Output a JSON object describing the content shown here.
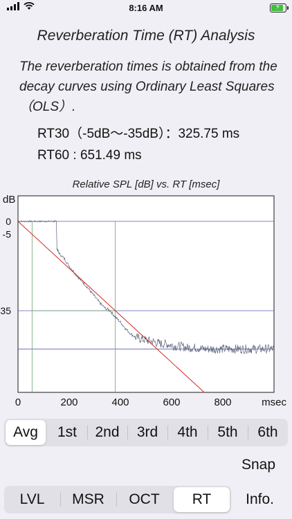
{
  "status": {
    "time": "8:16 AM"
  },
  "page": {
    "title": "Reverberation Time (RT) Analysis",
    "description": "The reverberation times is obtained from the decay curves using Ordinary Least Squares（OLS）.",
    "rt30": "RT30（-5dB～-35dB）：325.75 ms",
    "rt60": "RT60 : 651.49 ms"
  },
  "chart_data": {
    "type": "line",
    "title": "Relative SPL [dB] vs. RT [msec]",
    "xlabel": "msec",
    "ylabel": "dB",
    "xlim": [
      0,
      1000
    ],
    "ylim": [
      -67,
      10
    ],
    "x_ticks": [
      0,
      200,
      400,
      600,
      800
    ],
    "y_ticks": [
      0,
      -5,
      -35
    ],
    "reference_lines": {
      "horizontal_db": [
        0,
        -35,
        -50
      ],
      "vertical_ms": [
        55,
        380
      ]
    },
    "series": [
      {
        "kind": "measured",
        "color": "#5a6478",
        "x": [
          0,
          20,
          40,
          60,
          80,
          100,
          120,
          140,
          150,
          152,
          160,
          180,
          200,
          220,
          240,
          260,
          280,
          300,
          320,
          340,
          360,
          380,
          400,
          420,
          440,
          460,
          480,
          500,
          520,
          540,
          560,
          580,
          600,
          620,
          640,
          660,
          680,
          700,
          720,
          740,
          760,
          780,
          800,
          820,
          840,
          860,
          880,
          900,
          920,
          940,
          960,
          980,
          1000
        ],
        "y": [
          0,
          0,
          0,
          0,
          0,
          0,
          0,
          0,
          0,
          -10.5,
          -12.5,
          -14.5,
          -17.5,
          -20,
          -22.5,
          -24.5,
          -27,
          -29.5,
          -32,
          -34,
          -35,
          -37.5,
          -39.5,
          -42,
          -44,
          -45.5,
          -46,
          -46.5,
          -47,
          -47.5,
          -48,
          -48,
          -48.5,
          -49,
          -49,
          -49.5,
          -49.5,
          -49.5,
          -50,
          -50,
          -50,
          -50,
          -50,
          -50,
          -50,
          -50,
          -50,
          -50,
          -50,
          -50,
          -50,
          -50,
          -50
        ]
      },
      {
        "kind": "ols-fit",
        "color": "#d6261e",
        "x": [
          0,
          1000
        ],
        "y": [
          0,
          -92.1
        ]
      }
    ]
  },
  "periods": {
    "items": [
      "Avg",
      "1st",
      "2nd",
      "3rd",
      "4th",
      "5th",
      "6th"
    ],
    "selected": 0
  },
  "snap_label": "Snap",
  "tabs": {
    "items": [
      "LVL",
      "MSR",
      "OCT",
      "RT"
    ],
    "selected": 3
  },
  "info_label": "Info."
}
